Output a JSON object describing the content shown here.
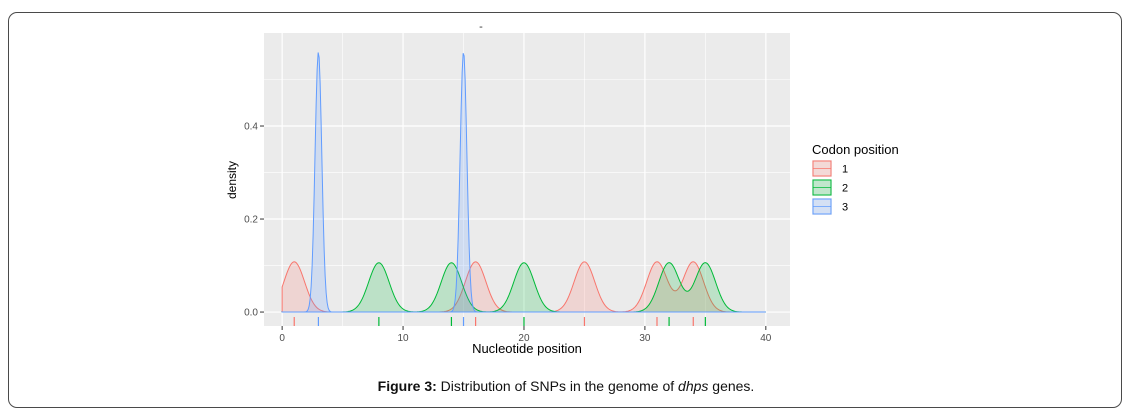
{
  "chart_data": {
    "type": "area",
    "title": "-",
    "xlabel": "Nucleotide position",
    "ylabel": "density",
    "xlim": [
      -1.5,
      42
    ],
    "ylim": [
      -0.03,
      0.6
    ],
    "xticks": [
      0,
      10,
      20,
      30,
      40
    ],
    "yticks": [
      0.0,
      0.2,
      0.4
    ],
    "ytick_labels": [
      "0.0",
      "0.2",
      "0.4"
    ],
    "grid": true,
    "legend": {
      "title": "Codon position",
      "placement": "right",
      "entries": [
        "1",
        "2",
        "3"
      ]
    },
    "series": [
      {
        "name": "1",
        "line_color": "#F8766D",
        "fill_color": "#F8766D",
        "rug": [
          1,
          16,
          25,
          31,
          34
        ],
        "peaks": [
          {
            "x": 1,
            "height": 0.108
          },
          {
            "x": 16,
            "height": 0.108
          },
          {
            "x": 25,
            "height": 0.108
          },
          {
            "x": 31,
            "height": 0.108
          },
          {
            "x": 34,
            "height": 0.108
          }
        ]
      },
      {
        "name": "2",
        "line_color": "#00BA38",
        "fill_color": "#00BA38",
        "rug": [
          8,
          14,
          20,
          32,
          35
        ],
        "peaks": [
          {
            "x": 8,
            "height": 0.106
          },
          {
            "x": 14,
            "height": 0.106
          },
          {
            "x": 20,
            "height": 0.106
          },
          {
            "x": 32,
            "height": 0.106
          },
          {
            "x": 35,
            "height": 0.106
          }
        ]
      },
      {
        "name": "3",
        "line_color": "#619CFF",
        "fill_color": "#619CFF",
        "rug": [
          3,
          15
        ],
        "peaks": [
          {
            "x": 3,
            "height": 0.56
          },
          {
            "x": 15,
            "height": 0.56
          }
        ]
      }
    ]
  },
  "caption": {
    "label": "Figure 3:",
    "text_before": " Distribution of SNPs in the genome of ",
    "italic": "dhps",
    "text_after": " genes."
  }
}
